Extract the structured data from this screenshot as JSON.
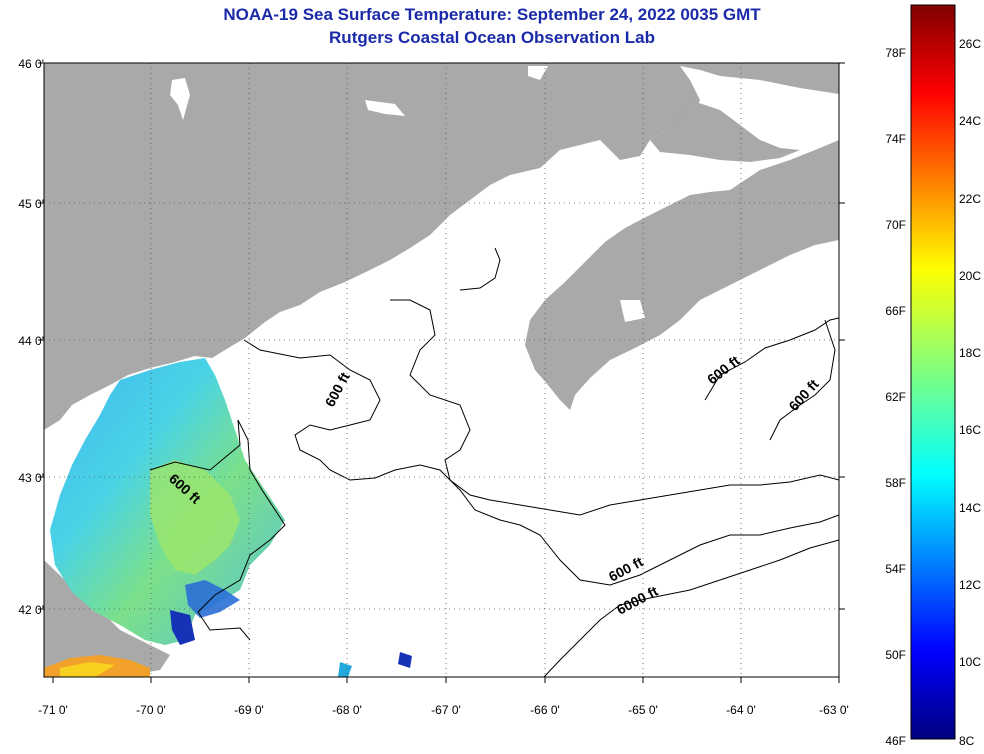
{
  "title_line1": "NOAA-19 Sea Surface Temperature:  September 24, 2022 0035 GMT",
  "title_line2": "Rutgers Coastal Ocean Observation Lab",
  "lat_ticks": [
    "46 0'",
    "45 0'",
    "44 0'",
    "43 0'",
    "42 0'"
  ],
  "lon_ticks": [
    "-71 0'",
    "-70 0'",
    "-69 0'",
    "-68 0'",
    "-67 0'",
    "-66 0'",
    "-65 0'",
    "-64 0'",
    "-63 0'"
  ],
  "contour_labels": [
    {
      "text": "600 ft",
      "id": "contour-label-600-west"
    },
    {
      "text": "600 ft",
      "id": "contour-label-600-gulf"
    },
    {
      "text": "600 ft",
      "id": "contour-label-600-south"
    },
    {
      "text": "6000 ft",
      "id": "contour-label-6000"
    },
    {
      "text": "600 ft",
      "id": "contour-label-600-ns1"
    },
    {
      "text": "600 ft",
      "id": "contour-label-600-ns2"
    }
  ],
  "colorbar": {
    "fahrenheit": [
      "78F",
      "74F",
      "70F",
      "66F",
      "62F",
      "58F",
      "54F",
      "50F",
      "46F"
    ],
    "celsius": [
      "26C",
      "24C",
      "22C",
      "20C",
      "18C",
      "16C",
      "14C",
      "12C",
      "10C",
      "8C"
    ],
    "min_c": 8,
    "max_c": 27
  },
  "colors": {
    "land": "#a9a9a9",
    "title": "#1a2aa8",
    "contour": "#000000"
  }
}
